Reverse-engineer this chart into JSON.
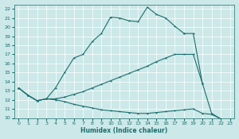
{
  "xlabel": "Humidex (Indice chaleur)",
  "bg_color": "#cce8e8",
  "line_color": "#1a6e6e",
  "xlim": [
    -0.5,
    23.5
  ],
  "ylim": [
    10,
    22.5
  ],
  "xticks": [
    0,
    1,
    2,
    3,
    4,
    5,
    6,
    7,
    8,
    9,
    10,
    11,
    12,
    13,
    14,
    15,
    16,
    17,
    18,
    19,
    20,
    21,
    22,
    23
  ],
  "yticks": [
    10,
    11,
    12,
    13,
    14,
    15,
    16,
    17,
    18,
    19,
    20,
    21,
    22
  ],
  "curve1_x": [
    0,
    1,
    2,
    3,
    4,
    5,
    6,
    7,
    8,
    9,
    10,
    11,
    12,
    13,
    14,
    15,
    16,
    17,
    18
  ],
  "curve1_y": [
    13.3,
    12.5,
    11.9,
    12.1,
    13.3,
    15.0,
    16.6,
    17.0,
    18.4,
    19.3,
    21.1,
    21.0,
    20.7,
    20.6,
    22.2,
    21.4,
    21.0,
    20.1,
    19.3
  ],
  "curve2_x": [
    0,
    1,
    2,
    3,
    4,
    5,
    6,
    7,
    8,
    9,
    10,
    11,
    12,
    13,
    14,
    15,
    16,
    17,
    18,
    19,
    20
  ],
  "curve2_y": [
    13.3,
    12.5,
    11.9,
    12.1,
    12.1,
    12.3,
    12.6,
    12.9,
    13.3,
    13.7,
    14.1,
    14.5,
    14.9,
    15.3,
    15.7,
    16.2,
    16.6,
    17.0,
    17.0,
    17.0,
    13.8
  ],
  "curve3_x": [
    0,
    1,
    2,
    3,
    4,
    5,
    6,
    7,
    8,
    9,
    10,
    11,
    12,
    13,
    14,
    15,
    16,
    17,
    18,
    19,
    20,
    21,
    22,
    23
  ],
  "curve3_y": [
    13.3,
    12.5,
    11.9,
    12.1,
    12.0,
    11.8,
    11.5,
    11.3,
    11.1,
    10.9,
    10.8,
    10.7,
    10.6,
    10.5,
    10.5,
    10.6,
    10.7,
    10.8,
    10.9,
    11.0,
    10.5,
    10.4,
    9.9,
    9.9
  ],
  "curve4_x": [
    18,
    19,
    20,
    21,
    22,
    23
  ],
  "curve4_y": [
    19.3,
    19.3,
    13.8,
    10.5,
    9.9,
    9.9
  ]
}
